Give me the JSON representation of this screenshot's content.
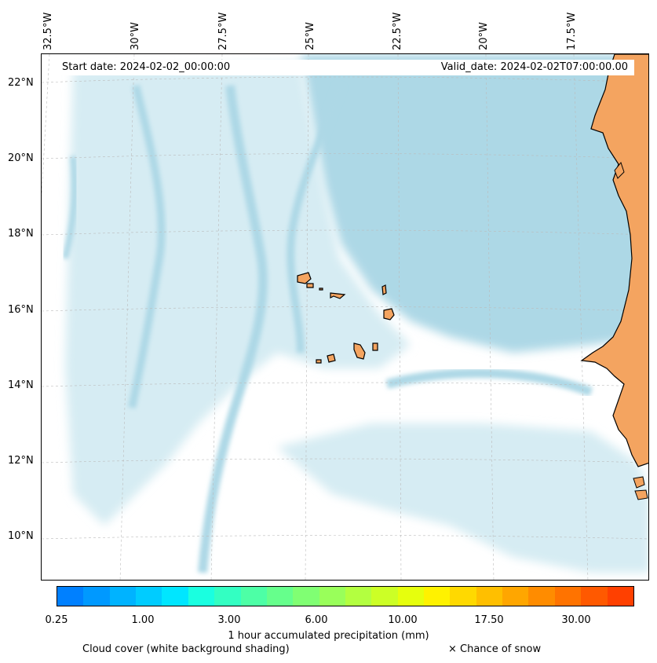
{
  "header": {
    "start_date": "Start date: 2024-02-02_00:00:00",
    "valid_date": "Valid_date: 2024-02-02T07:00:00.00"
  },
  "map": {
    "longitude_labels": [
      "32.5°W",
      "30°W",
      "27.5°W",
      "25°W",
      "22.5°W",
      "20°W",
      "17.5°W"
    ],
    "latitude_labels": [
      "22°N",
      "20°N",
      "18°N",
      "16°N",
      "14°N",
      "12°N",
      "10°N"
    ],
    "colors": {
      "cloud_dense": "#add8e6",
      "cloud_light": "#d6ecf3",
      "land": "#f4a460",
      "coastline": "#000000",
      "gridline": "#bbbbbb"
    },
    "features": [
      "atlantic-ocean",
      "cape-verde-islands",
      "west-africa-coast"
    ]
  },
  "colorbar": {
    "title": "1 hour accumulated precipitation (mm)",
    "tick_labels": [
      "0.25",
      "1.00",
      "3.00",
      "6.00",
      "10.00",
      "17.50",
      "30.00"
    ],
    "colors": [
      "#0080ff",
      "#0099ff",
      "#00b3ff",
      "#00ccff",
      "#00e6ff",
      "#1affe0",
      "#33ffc2",
      "#4dffa6",
      "#66ff8c",
      "#80ff73",
      "#99ff5a",
      "#b3ff40",
      "#ccff26",
      "#e6ff0d",
      "#fff200",
      "#ffd900",
      "#ffbf00",
      "#ffa600",
      "#ff8c00",
      "#ff7300",
      "#ff5900",
      "#ff4000"
    ]
  },
  "legend": {
    "cloud_cover": "Cloud cover (white background shading)",
    "snow": "× Chance of snow"
  }
}
